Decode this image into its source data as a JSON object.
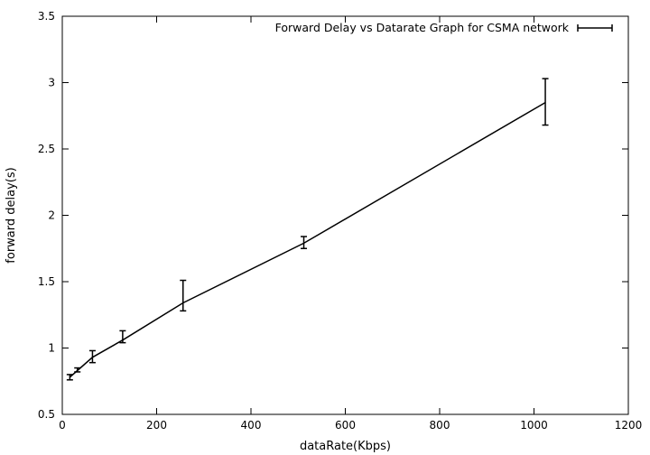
{
  "chart_data": {
    "type": "line",
    "title": "",
    "xlabel": "dataRate(Kbps)",
    "ylabel": "forward delay(s)",
    "xlim": [
      0,
      1200
    ],
    "ylim": [
      0.5,
      3.5
    ],
    "xticks": [
      0,
      200,
      400,
      600,
      800,
      1000,
      1200
    ],
    "yticks": [
      0.5,
      1,
      1.5,
      2,
      2.5,
      3,
      3.5
    ],
    "ytick_labels": [
      "0.5",
      "1",
      "1.5",
      "2",
      "2.5",
      "3",
      "3.5"
    ],
    "grid": false,
    "legend_position": "top-right",
    "series": [
      {
        "name": "Forward Delay vs Datarate Graph for CSMA network",
        "color": "#000000",
        "error_bars": true,
        "x": [
          16,
          32,
          64,
          128,
          256,
          512,
          1024
        ],
        "y": [
          0.78,
          0.83,
          0.93,
          1.06,
          1.34,
          1.79,
          2.85
        ],
        "y_low": [
          0.76,
          0.82,
          0.89,
          1.04,
          1.28,
          1.75,
          2.68
        ],
        "y_high": [
          0.8,
          0.85,
          0.98,
          1.13,
          1.51,
          1.84,
          3.03
        ]
      }
    ]
  }
}
